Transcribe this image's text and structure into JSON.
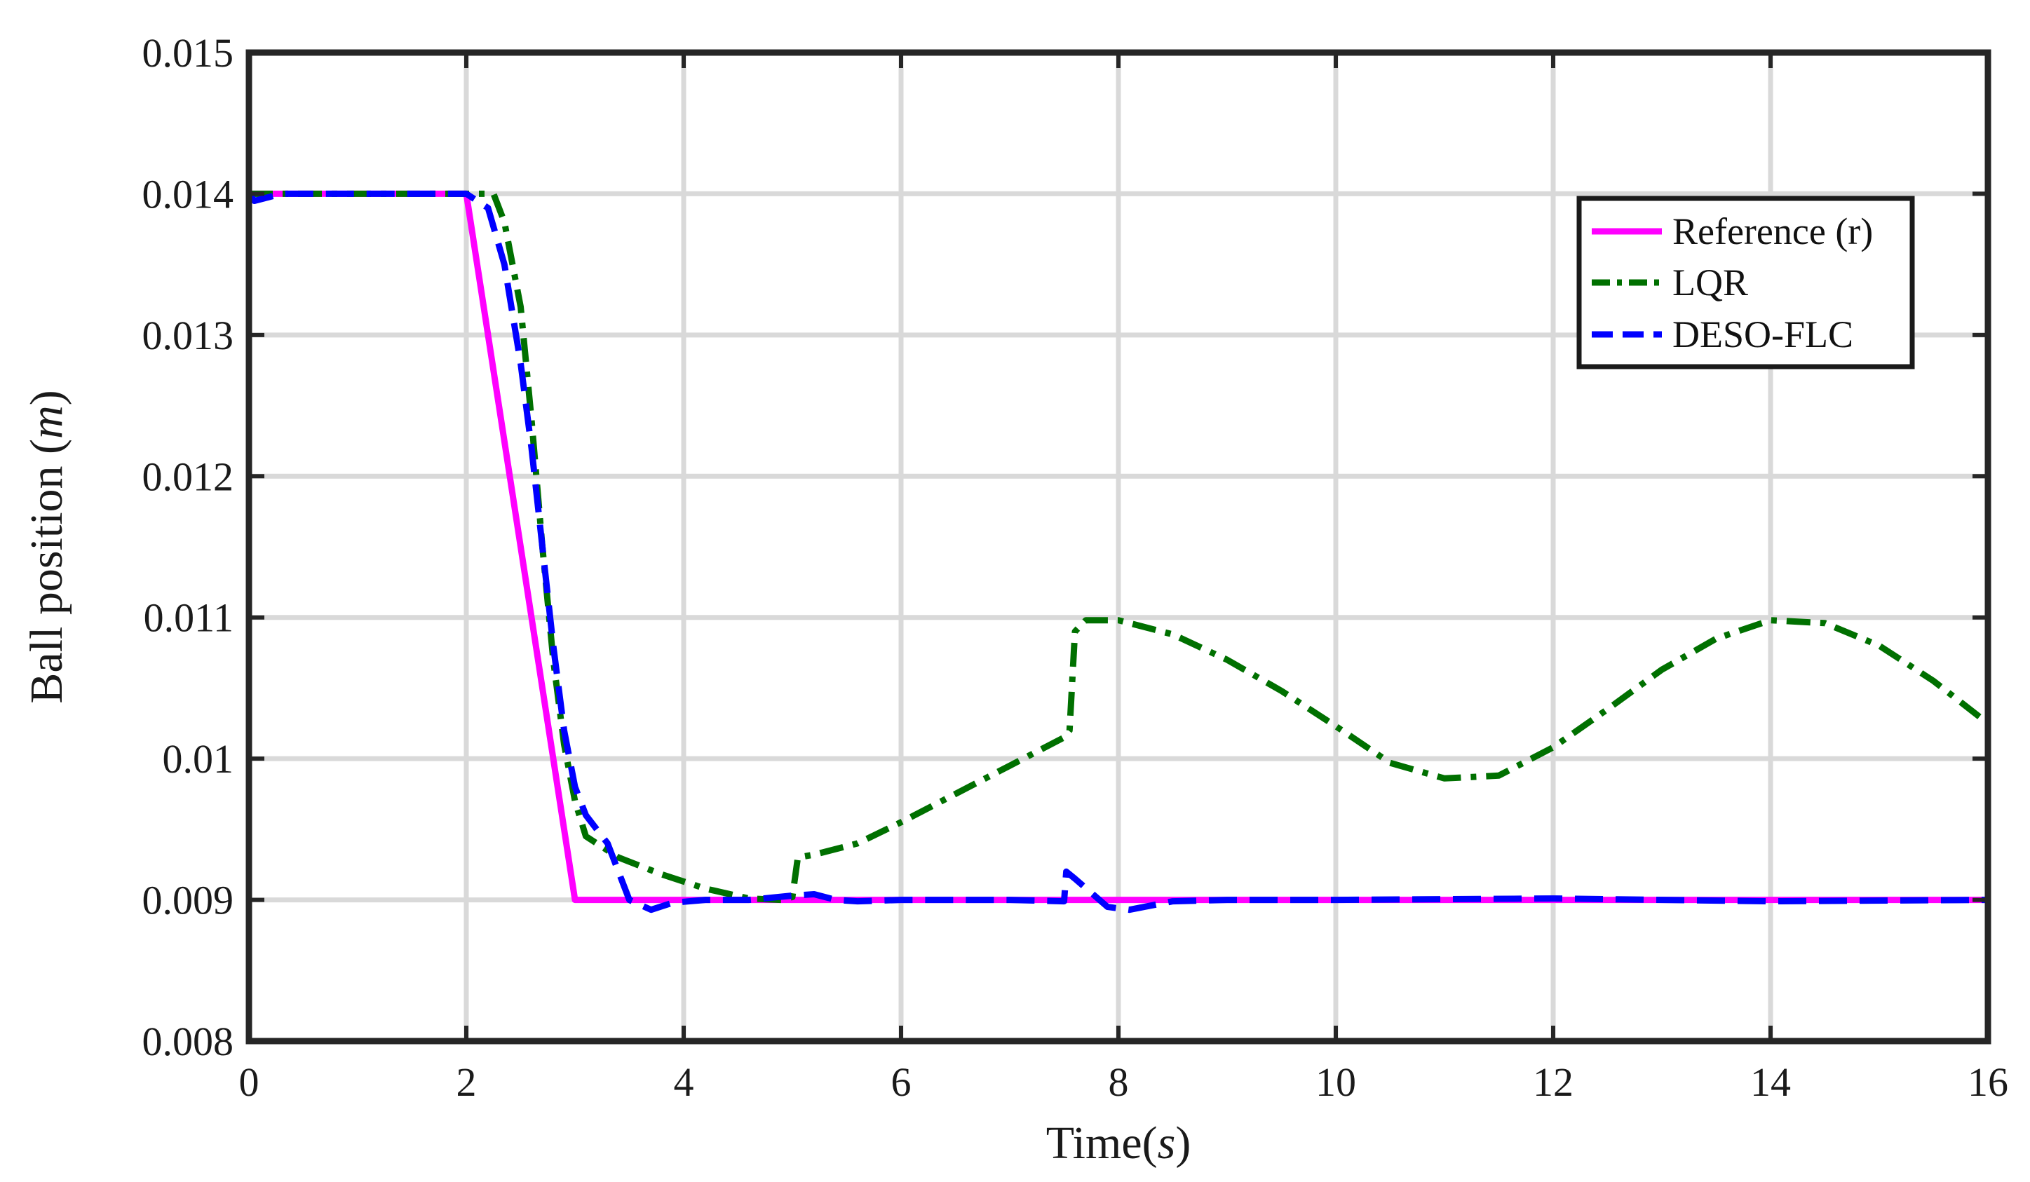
{
  "chart_data": {
    "type": "line",
    "title": "",
    "xlabel_main": "Time",
    "xlabel_unit": "s",
    "ylabel_main": "Ball position",
    "ylabel_unit": "m",
    "xlim": [
      0,
      16
    ],
    "ylim": [
      0.008,
      0.015
    ],
    "xticks": [
      0,
      2,
      4,
      6,
      8,
      10,
      12,
      14,
      16
    ],
    "xtick_labels": [
      "0",
      "2",
      "4",
      "6",
      "8",
      "10",
      "12",
      "14",
      "16"
    ],
    "yticks": [
      0.008,
      0.009,
      0.01,
      0.011,
      0.012,
      0.013,
      0.014,
      0.015
    ],
    "ytick_labels": [
      "0.008",
      "0.009",
      "0.01",
      "0.011",
      "0.012",
      "0.013",
      "0.014",
      "0.015"
    ],
    "grid": true,
    "legend_position": "top-right",
    "series": [
      {
        "name": "Reference (r)",
        "color": "#ff00ff",
        "dash": "solid",
        "x": [
          0,
          2,
          3,
          16
        ],
        "y": [
          0.014,
          0.014,
          0.009,
          0.009
        ]
      },
      {
        "name": "LQR",
        "color": "#007000",
        "dash": "dashdot",
        "x": [
          0,
          2.25,
          2.35,
          2.5,
          2.6,
          2.7,
          2.8,
          2.9,
          3.0,
          3.1,
          3.4,
          3.8,
          4.2,
          4.6,
          4.9,
          5.0,
          5.05,
          5.2,
          5.6,
          6.0,
          6.5,
          7.0,
          7.5,
          7.55,
          7.6,
          7.7,
          8.0,
          8.5,
          9.0,
          9.5,
          10.0,
          10.5,
          11.0,
          11.5,
          12.0,
          12.5,
          13.0,
          13.5,
          14.0,
          14.5,
          15.0,
          15.5,
          16.0
        ],
        "y": [
          0.014,
          0.014,
          0.0138,
          0.0132,
          0.0124,
          0.0115,
          0.0107,
          0.0101,
          0.0097,
          0.00945,
          0.0093,
          0.00918,
          0.00908,
          0.00901,
          0.009,
          0.00902,
          0.0093,
          0.00932,
          0.0094,
          0.00955,
          0.00975,
          0.00995,
          0.01015,
          0.0102,
          0.0109,
          0.01098,
          0.01098,
          0.01088,
          0.0107,
          0.01048,
          0.01023,
          0.00997,
          0.00986,
          0.00988,
          0.01008,
          0.01035,
          0.01063,
          0.01085,
          0.01098,
          0.01096,
          0.0108,
          0.01055,
          0.01025
        ]
      },
      {
        "name": "DESO-FLC",
        "color": "#0000ff",
        "dash": "dashed",
        "x": [
          0,
          0.05,
          0.15,
          0.3,
          2.0,
          2.2,
          2.35,
          2.5,
          2.6,
          2.7,
          2.8,
          2.9,
          3.0,
          3.1,
          3.3,
          3.5,
          3.7,
          3.9,
          4.2,
          4.6,
          5.0,
          5.2,
          5.4,
          5.6,
          6.0,
          7.0,
          7.5,
          7.52,
          7.6,
          7.75,
          7.9,
          8.1,
          8.5,
          9.0,
          10.0,
          12.0,
          14.0,
          16.0
        ],
        "y": [
          0.014,
          0.01395,
          0.01397,
          0.014,
          0.014,
          0.0139,
          0.0135,
          0.0128,
          0.0122,
          0.0115,
          0.0108,
          0.0102,
          0.0098,
          0.0096,
          0.0094,
          0.009,
          0.00893,
          0.00898,
          0.009,
          0.009,
          0.00903,
          0.00904,
          0.009,
          0.00899,
          0.009,
          0.009,
          0.00899,
          0.0092,
          0.00915,
          0.00905,
          0.00895,
          0.00893,
          0.00899,
          0.009,
          0.009,
          0.00901,
          0.00899,
          0.009
        ]
      }
    ]
  }
}
